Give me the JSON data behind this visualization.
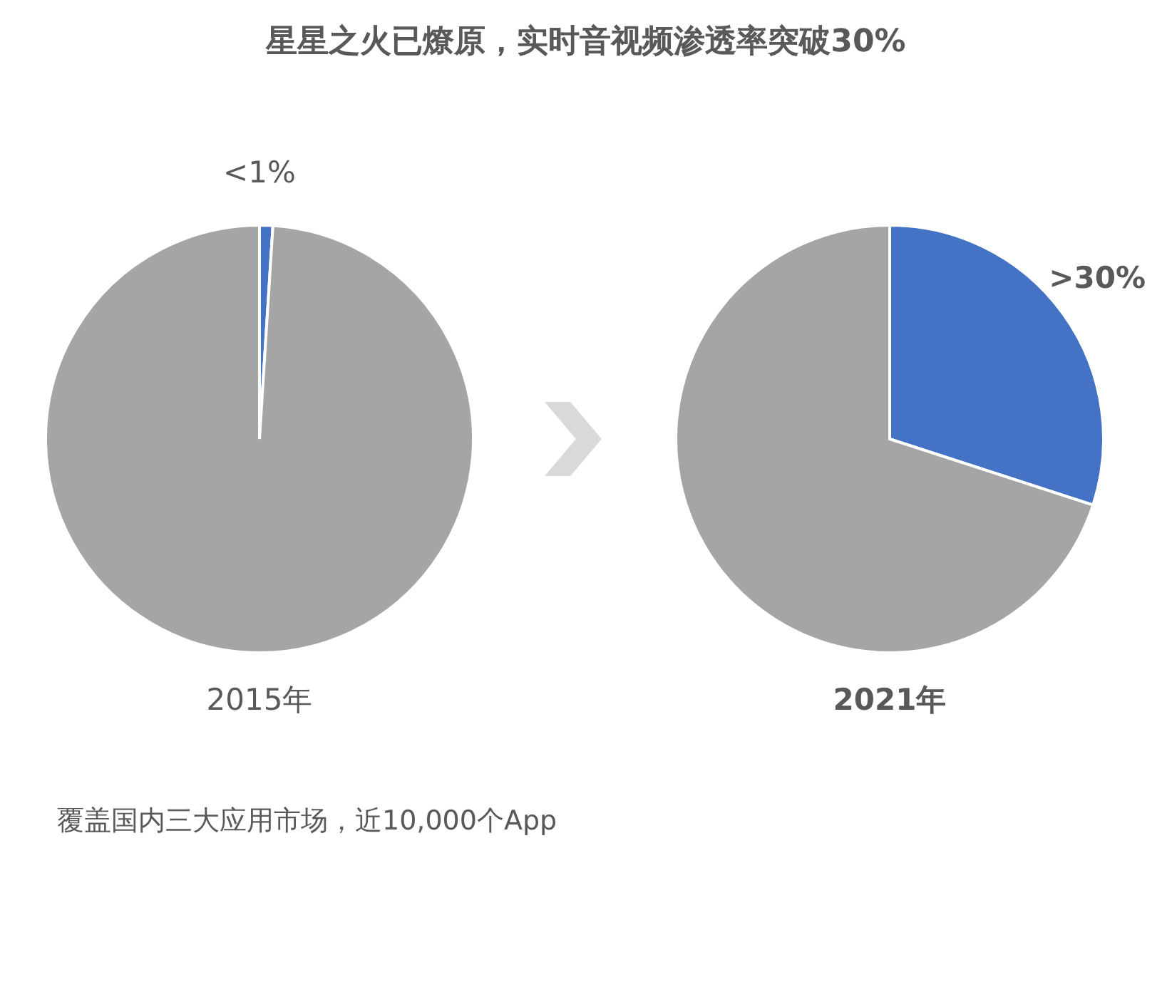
{
  "chart_data": [
    {
      "type": "other",
      "title": "星星之火已燎原，实时音视频渗透率突破30%",
      "annotations": [
        "覆盖国内三大应用市场，近10,000个App"
      ]
    },
    {
      "type": "pie",
      "title": "2015年",
      "categories": [
        null,
        null
      ],
      "values": [
        1,
        99
      ],
      "colors": [
        "#4472c4",
        "#a5a5a5"
      ],
      "value_labels": [
        "<1%",
        null
      ]
    },
    {
      "type": "pie",
      "title": "2021年",
      "categories": [
        null,
        null
      ],
      "values": [
        30,
        70
      ],
      "colors": [
        "#4472c4",
        "#a5a5a5"
      ],
      "value_labels": [
        ">30%",
        null
      ]
    }
  ]
}
